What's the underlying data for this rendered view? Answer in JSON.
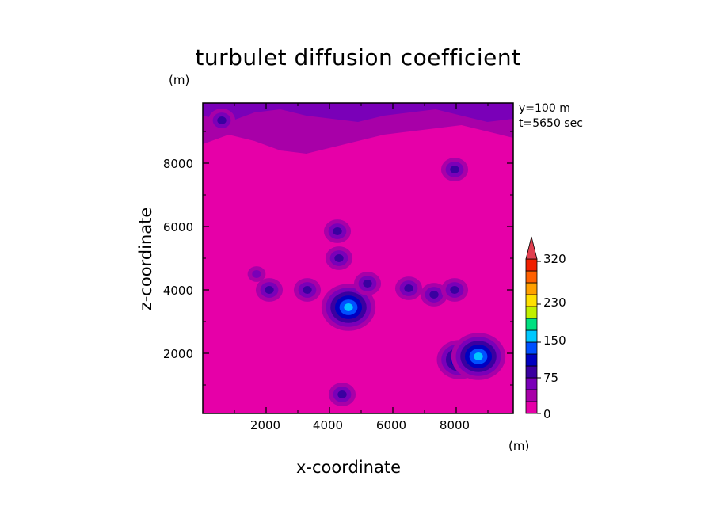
{
  "chart_data": {
    "type": "heatmap",
    "title": "turbulet diffusion coefficient",
    "xlabel": "x-coordinate",
    "ylabel": "z-coordinate",
    "x_unit": "(m)",
    "y_unit": "(m)",
    "xlim": [
      0,
      9800
    ],
    "ylim": [
      100,
      9900
    ],
    "x_ticks": [
      "2000",
      "4000",
      "6000",
      "8000"
    ],
    "y_ticks": [
      "2000",
      "4000",
      "6000",
      "8000"
    ],
    "x_tick_values": [
      2000,
      4000,
      6000,
      8000
    ],
    "y_tick_values": [
      2000,
      4000,
      6000,
      8000
    ],
    "annotations": [
      "y=100 m",
      "t=5650 sec"
    ],
    "colorbar": {
      "tick_labels": [
        "0",
        "75",
        "150",
        "230",
        "320"
      ],
      "tick_values": [
        0,
        75,
        150,
        230,
        320
      ],
      "levels": [
        0,
        25,
        50,
        75,
        100,
        125,
        150,
        175,
        200,
        225,
        250,
        275,
        300,
        325
      ],
      "colors": [
        "#e600a8",
        "#a800a8",
        "#7a00b8",
        "#3a00a0",
        "#0000c0",
        "#0050ff",
        "#00c8ff",
        "#00e080",
        "#c0f000",
        "#ffe000",
        "#ffa000",
        "#ff6000",
        "#f02000",
        "#e04050"
      ],
      "extend": "max"
    },
    "background_value": 15,
    "features": [
      {
        "x": 4600,
        "z": 3450,
        "peak": 150
      },
      {
        "x": 4300,
        "z": 5000,
        "peak": 90
      },
      {
        "x": 5200,
        "z": 4200,
        "peak": 80
      },
      {
        "x": 2100,
        "z": 4000,
        "peak": 80
      },
      {
        "x": 1700,
        "z": 4500,
        "peak": 60
      },
      {
        "x": 3300,
        "z": 4000,
        "peak": 75
      },
      {
        "x": 4250,
        "z": 5850,
        "peak": 75
      },
      {
        "x": 6500,
        "z": 4050,
        "peak": 75
      },
      {
        "x": 7300,
        "z": 3850,
        "peak": 85
      },
      {
        "x": 7950,
        "z": 4000,
        "peak": 80
      },
      {
        "x": 8100,
        "z": 1800,
        "peak": 140
      },
      {
        "x": 8700,
        "z": 1900,
        "peak": 150
      },
      {
        "x": 4400,
        "z": 700,
        "peak": 80
      },
      {
        "x": 600,
        "z": 9350,
        "peak": 80
      },
      {
        "x": 7950,
        "z": 7800,
        "peak": 75
      }
    ]
  }
}
